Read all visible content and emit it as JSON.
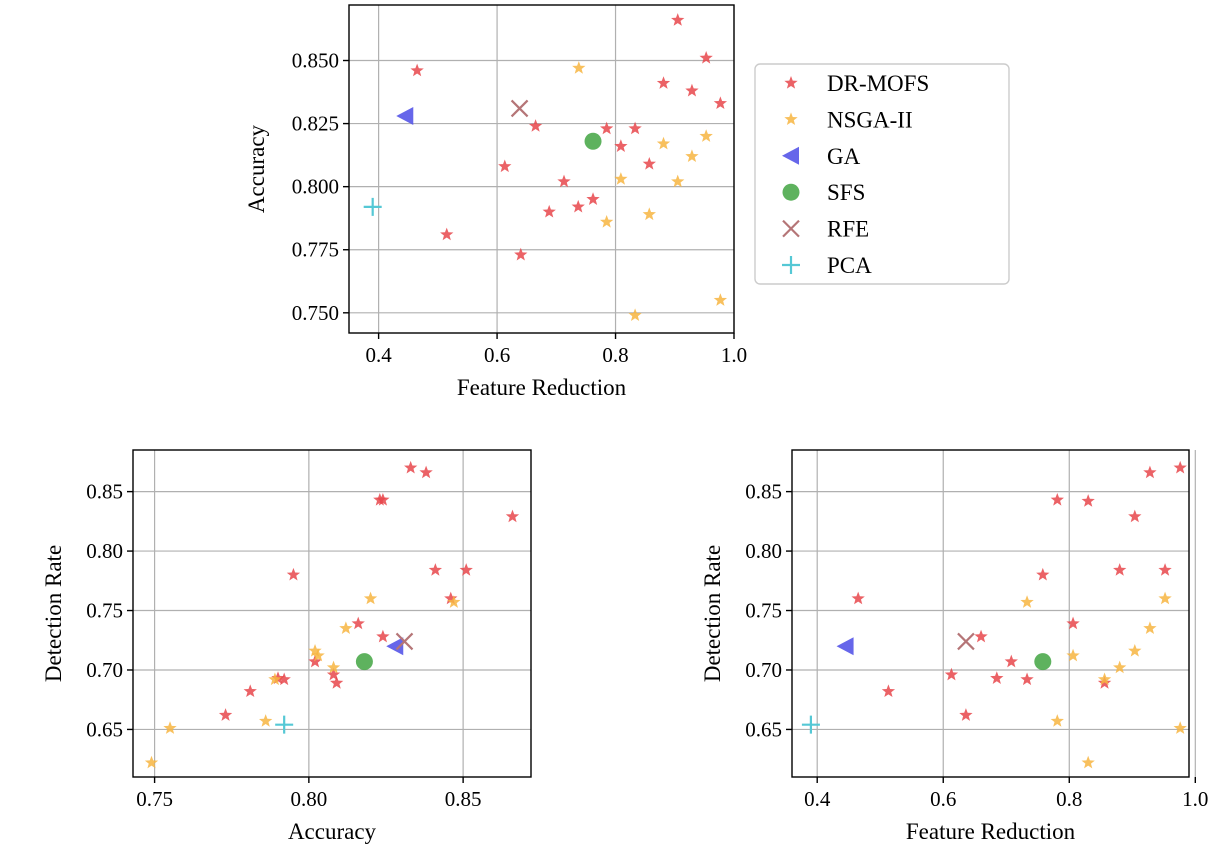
{
  "chart_data": [
    {
      "type": "scatter",
      "id": "top",
      "title": "",
      "xlabel": "Feature Reduction",
      "ylabel": "Accuracy",
      "xlim": [
        0.35,
        1.0
      ],
      "ylim": [
        0.742,
        0.872
      ],
      "xticks": [
        0.4,
        0.6,
        0.8,
        1.0
      ],
      "xtick_labels": [
        "0.4",
        "0.6",
        "0.8",
        "1.0"
      ],
      "yticks": [
        0.75,
        0.775,
        0.8,
        0.825,
        0.85
      ],
      "ytick_labels": [
        "0.750",
        "0.775",
        "0.800",
        "0.825",
        "0.850"
      ],
      "grid": true,
      "series": [
        {
          "name": "DR-MOFS",
          "marker": "star",
          "color": "#e8474b",
          "points": [
            [
              0.465,
              0.846
            ],
            [
              0.515,
              0.781
            ],
            [
              0.613,
              0.808
            ],
            [
              0.64,
              0.773
            ],
            [
              0.665,
              0.824
            ],
            [
              0.688,
              0.79
            ],
            [
              0.713,
              0.802
            ],
            [
              0.737,
              0.792
            ],
            [
              0.762,
              0.795
            ],
            [
              0.785,
              0.823
            ],
            [
              0.809,
              0.816
            ],
            [
              0.833,
              0.823
            ],
            [
              0.857,
              0.809
            ],
            [
              0.881,
              0.841
            ],
            [
              0.905,
              0.866
            ],
            [
              0.929,
              0.838
            ],
            [
              0.953,
              0.851
            ],
            [
              0.977,
              0.833
            ]
          ]
        },
        {
          "name": "NSGA-II",
          "marker": "star",
          "color": "#f7b541",
          "points": [
            [
              0.738,
              0.847
            ],
            [
              0.785,
              0.786
            ],
            [
              0.809,
              0.803
            ],
            [
              0.833,
              0.749
            ],
            [
              0.857,
              0.789
            ],
            [
              0.881,
              0.817
            ],
            [
              0.905,
              0.802
            ],
            [
              0.929,
              0.812
            ],
            [
              0.953,
              0.82
            ],
            [
              0.977,
              0.755
            ]
          ]
        },
        {
          "name": "GA",
          "marker": "triangle-left",
          "color": "#5555e8",
          "points": [
            [
              0.445,
              0.828
            ]
          ]
        },
        {
          "name": "SFS",
          "marker": "circle",
          "color": "#4caa4c",
          "points": [
            [
              0.762,
              0.818
            ]
          ]
        },
        {
          "name": "RFE",
          "marker": "x",
          "color": "#b57577",
          "points": [
            [
              0.638,
              0.831
            ]
          ]
        },
        {
          "name": "PCA",
          "marker": "plus",
          "color": "#55c8d5",
          "points": [
            [
              0.39,
              0.792
            ]
          ]
        }
      ]
    },
    {
      "type": "scatter",
      "id": "bottom-left",
      "title": "",
      "xlabel": "Accuracy",
      "ylabel": "Detection Rate",
      "xlim": [
        0.743,
        0.872
      ],
      "ylim": [
        0.61,
        0.885
      ],
      "xticks": [
        0.75,
        0.8,
        0.85
      ],
      "xtick_labels": [
        "0.75",
        "0.80",
        "0.85"
      ],
      "yticks": [
        0.65,
        0.7,
        0.75,
        0.8,
        0.85
      ],
      "ytick_labels": [
        "0.65",
        "0.70",
        "0.75",
        "0.80",
        "0.85"
      ],
      "grid": true,
      "series": [
        {
          "name": "DR-MOFS",
          "marker": "star",
          "color": "#e8474b",
          "points": [
            [
              0.773,
              0.662
            ],
            [
              0.781,
              0.682
            ],
            [
              0.79,
              0.693
            ],
            [
              0.792,
              0.692
            ],
            [
              0.795,
              0.78
            ],
            [
              0.802,
              0.707
            ],
            [
              0.808,
              0.696
            ],
            [
              0.809,
              0.689
            ],
            [
              0.816,
              0.739
            ],
            [
              0.823,
              0.843
            ],
            [
              0.824,
              0.843
            ],
            [
              0.824,
              0.728
            ],
            [
              0.833,
              0.87
            ],
            [
              0.838,
              0.866
            ],
            [
              0.841,
              0.784
            ],
            [
              0.846,
              0.76
            ],
            [
              0.851,
              0.784
            ],
            [
              0.866,
              0.829
            ]
          ]
        },
        {
          "name": "NSGA-II",
          "marker": "star",
          "color": "#f7b541",
          "points": [
            [
              0.749,
              0.622
            ],
            [
              0.755,
              0.651
            ],
            [
              0.786,
              0.657
            ],
            [
              0.789,
              0.692
            ],
            [
              0.802,
              0.716
            ],
            [
              0.803,
              0.712
            ],
            [
              0.808,
              0.702
            ],
            [
              0.812,
              0.735
            ],
            [
              0.82,
              0.76
            ],
            [
              0.847,
              0.757
            ]
          ]
        },
        {
          "name": "GA",
          "marker": "triangle-left",
          "color": "#5555e8",
          "points": [
            [
              0.828,
              0.72
            ]
          ]
        },
        {
          "name": "SFS",
          "marker": "circle",
          "color": "#4caa4c",
          "points": [
            [
              0.818,
              0.707
            ]
          ]
        },
        {
          "name": "RFE",
          "marker": "x",
          "color": "#b57577",
          "points": [
            [
              0.831,
              0.724
            ]
          ]
        },
        {
          "name": "PCA",
          "marker": "plus",
          "color": "#55c8d5",
          "points": [
            [
              0.792,
              0.654
            ]
          ]
        }
      ]
    },
    {
      "type": "scatter",
      "id": "bottom-right",
      "title": "",
      "xlabel": "Feature Reduction",
      "ylabel": "Detection Rate",
      "xlim": [
        0.36,
        0.99
      ],
      "ylim": [
        0.61,
        0.885
      ],
      "xticks": [
        0.4,
        0.6,
        0.8,
        1.0
      ],
      "xtick_labels": [
        "0.4",
        "0.6",
        "0.8",
        "1.0"
      ],
      "yticks": [
        0.65,
        0.7,
        0.75,
        0.8,
        0.85
      ],
      "ytick_labels": [
        "0.65",
        "0.70",
        "0.75",
        "0.80",
        "0.85"
      ],
      "grid": true,
      "series": [
        {
          "name": "DR-MOFS",
          "marker": "star",
          "color": "#e8474b",
          "points": [
            [
              0.465,
              0.76
            ],
            [
              0.513,
              0.682
            ],
            [
              0.613,
              0.696
            ],
            [
              0.636,
              0.662
            ],
            [
              0.66,
              0.728
            ],
            [
              0.685,
              0.693
            ],
            [
              0.708,
              0.707
            ],
            [
              0.733,
              0.692
            ],
            [
              0.758,
              0.78
            ],
            [
              0.781,
              0.843
            ],
            [
              0.806,
              0.739
            ],
            [
              0.83,
              0.842
            ],
            [
              0.856,
              0.689
            ],
            [
              0.88,
              0.784
            ],
            [
              0.904,
              0.829
            ],
            [
              0.928,
              0.866
            ],
            [
              0.952,
              0.784
            ],
            [
              0.976,
              0.87
            ]
          ]
        },
        {
          "name": "NSGA-II",
          "marker": "star",
          "color": "#f7b541",
          "points": [
            [
              0.733,
              0.757
            ],
            [
              0.781,
              0.657
            ],
            [
              0.806,
              0.712
            ],
            [
              0.83,
              0.622
            ],
            [
              0.856,
              0.692
            ],
            [
              0.88,
              0.702
            ],
            [
              0.904,
              0.716
            ],
            [
              0.928,
              0.735
            ],
            [
              0.952,
              0.76
            ],
            [
              0.976,
              0.651
            ]
          ]
        },
        {
          "name": "GA",
          "marker": "triangle-left",
          "color": "#5555e8",
          "points": [
            [
              0.445,
              0.72
            ]
          ]
        },
        {
          "name": "SFS",
          "marker": "circle",
          "color": "#4caa4c",
          "points": [
            [
              0.758,
              0.707
            ]
          ]
        },
        {
          "name": "RFE",
          "marker": "x",
          "color": "#b57577",
          "points": [
            [
              0.636,
              0.724
            ]
          ]
        },
        {
          "name": "PCA",
          "marker": "plus",
          "color": "#55c8d5",
          "points": [
            [
              0.39,
              0.654
            ]
          ]
        }
      ]
    }
  ],
  "legend": {
    "placement": "right of top plot",
    "items": [
      {
        "label": "DR-MOFS",
        "marker": "star",
        "color": "#e8474b"
      },
      {
        "label": "NSGA-II",
        "marker": "star",
        "color": "#f7b541"
      },
      {
        "label": "GA",
        "marker": "triangle-left",
        "color": "#5555e8"
      },
      {
        "label": "SFS",
        "marker": "circle",
        "color": "#4caa4c"
      },
      {
        "label": "RFE",
        "marker": "x",
        "color": "#b57577"
      },
      {
        "label": "PCA",
        "marker": "plus",
        "color": "#55c8d5"
      }
    ]
  }
}
